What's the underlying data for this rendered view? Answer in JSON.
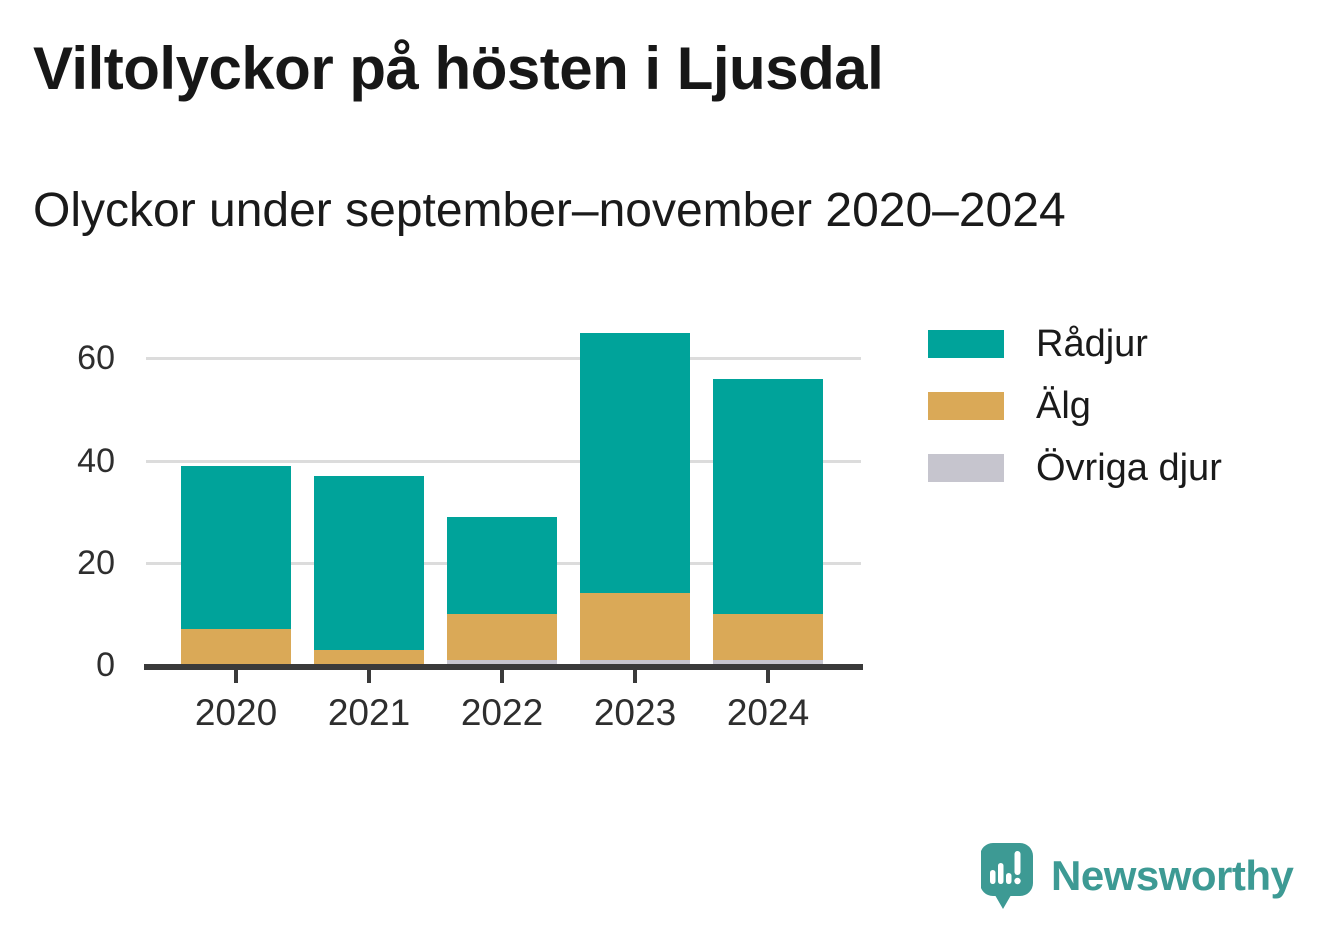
{
  "header": {
    "title": "Viltolyckor på hösten i Ljusdal",
    "subtitle": "Olyckor under september–november 2020–2024"
  },
  "chart_data": {
    "type": "bar",
    "stacked": true,
    "title": "Viltolyckor på hösten i Ljusdal",
    "subtitle": "Olyckor under september–november 2020–2024",
    "categories": [
      "2020",
      "2021",
      "2022",
      "2023",
      "2024"
    ],
    "series": [
      {
        "name": "Rådjur",
        "color": "#00a39a",
        "values": [
          32,
          34,
          19,
          51,
          46
        ]
      },
      {
        "name": "Älg",
        "color": "#daa957",
        "values": [
          7,
          3,
          9,
          13,
          9
        ]
      },
      {
        "name": "Övriga djur",
        "color": "#c6c5ce",
        "values": [
          0,
          0,
          1,
          1,
          1
        ]
      }
    ],
    "stack_order_bottom_to_top": [
      "Övriga djur",
      "Älg",
      "Rådjur"
    ],
    "totals": [
      39,
      37,
      29,
      65,
      56
    ],
    "yticks": [
      0,
      20,
      40,
      60
    ],
    "ylim": [
      0,
      65.5
    ],
    "xlabel": "",
    "ylabel": "",
    "grid": true,
    "legend_position": "right-top",
    "colors": {
      "axis": "#3a3a3a",
      "gridline": "#dcdcdc",
      "tick_label": "#2e2e2e"
    }
  },
  "legend": {
    "items": [
      {
        "label": "Rådjur",
        "color": "#00a39a"
      },
      {
        "label": "Älg",
        "color": "#daa957"
      },
      {
        "label": "Övriga djur",
        "color": "#c6c5ce"
      }
    ]
  },
  "branding": {
    "logo_text": "Newsworthy",
    "logo_icon": "newsworthy-speech-bubble-bar-chart-icon",
    "logo_color": "#3d9a94"
  }
}
